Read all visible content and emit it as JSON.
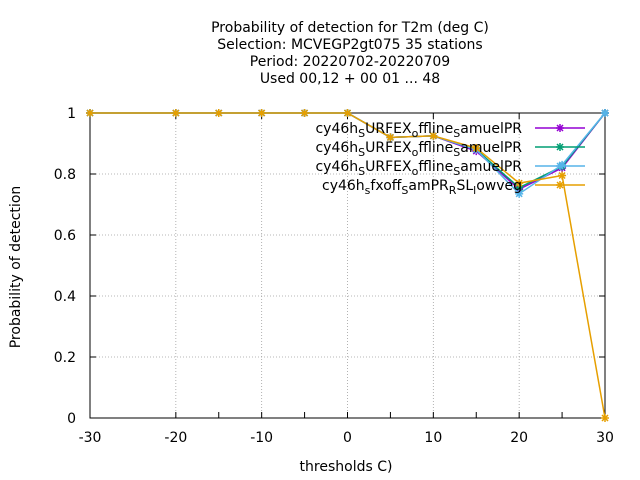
{
  "chart_data": {
    "type": "line",
    "title_lines": [
      "Probability of detection  for T2m (deg C)",
      "Selection: MCVEGP2gt075     35 stations",
      "Period: 20220702-20220709",
      "Used  00,12  + 00 01 ... 48"
    ],
    "xlabel": "thresholds C)",
    "ylabel": "Probability of detection",
    "xlim": [
      -30,
      30
    ],
    "ylim": [
      0,
      1
    ],
    "x_ticks": [
      -30,
      -20,
      -10,
      0,
      10,
      20,
      30
    ],
    "x_tick_labels": [
      "-30",
      "-20",
      "-10",
      "0",
      "10",
      "20",
      "30"
    ],
    "y_ticks": [
      0,
      0.2,
      0.4,
      0.6,
      0.8,
      1
    ],
    "y_tick_labels": [
      "0",
      "0.2",
      "0.4",
      "0.6",
      "0.8",
      "1"
    ],
    "grid": true,
    "legend_position": "top-right",
    "x": [
      -30,
      -20,
      -15,
      -10,
      -5,
      0,
      5,
      10,
      15,
      20,
      25,
      30
    ],
    "series": [
      {
        "name": "cy46h_SURFEX_offline_SamuelPR",
        "label_parts": [
          [
            "cy46h",
            ""
          ],
          [
            "S",
            "sub"
          ],
          [
            "URFEX",
            ""
          ],
          [
            "o",
            "sub"
          ],
          [
            "ffline",
            ""
          ],
          [
            "S",
            "sub"
          ],
          [
            "amuelPR",
            ""
          ]
        ],
        "color": "#9400d3",
        "values": [
          1,
          1,
          1,
          1,
          1,
          1,
          0.92,
          0.925,
          0.875,
          0.75,
          0.82,
          1
        ]
      },
      {
        "name": "cy46h_SURFEX_offline_SamuelPR",
        "label_parts": [
          [
            "cy46h",
            ""
          ],
          [
            "S",
            "sub"
          ],
          [
            "URFEX",
            ""
          ],
          [
            "o",
            "sub"
          ],
          [
            "ffline",
            ""
          ],
          [
            "S",
            "sub"
          ],
          [
            "amuelPR",
            ""
          ]
        ],
        "color": "#009e73",
        "values": [
          1,
          1,
          1,
          1,
          1,
          1,
          0.92,
          0.925,
          0.88,
          0.755,
          0.825,
          1
        ]
      },
      {
        "name": "cy46h_SURFEX_offline_SamuelPR",
        "label_parts": [
          [
            "cy46h",
            ""
          ],
          [
            "S",
            "sub"
          ],
          [
            "URFEX",
            ""
          ],
          [
            "o",
            "sub"
          ],
          [
            "ffline",
            ""
          ],
          [
            "S",
            "sub"
          ],
          [
            "amuelPR",
            ""
          ]
        ],
        "color": "#56b4e9",
        "values": [
          1,
          1,
          1,
          1,
          1,
          1,
          0.92,
          0.925,
          0.88,
          0.735,
          0.83,
          1
        ]
      },
      {
        "name": "cy46h_sfxoff_SamPR_RSL_lowveg",
        "label_parts": [
          [
            "cy46h",
            ""
          ],
          [
            "s",
            "sub"
          ],
          [
            "fxoff",
            ""
          ],
          [
            "S",
            "sub"
          ],
          [
            "amPR",
            ""
          ],
          [
            "R",
            "sub"
          ],
          [
            "SL",
            ""
          ],
          [
            "l",
            "sub"
          ],
          [
            "owveg",
            ""
          ]
        ],
        "color": "#e69f00",
        "values": [
          1,
          1,
          1,
          1,
          1,
          1,
          0.92,
          0.925,
          0.885,
          0.77,
          0.795,
          0
        ]
      }
    ]
  }
}
